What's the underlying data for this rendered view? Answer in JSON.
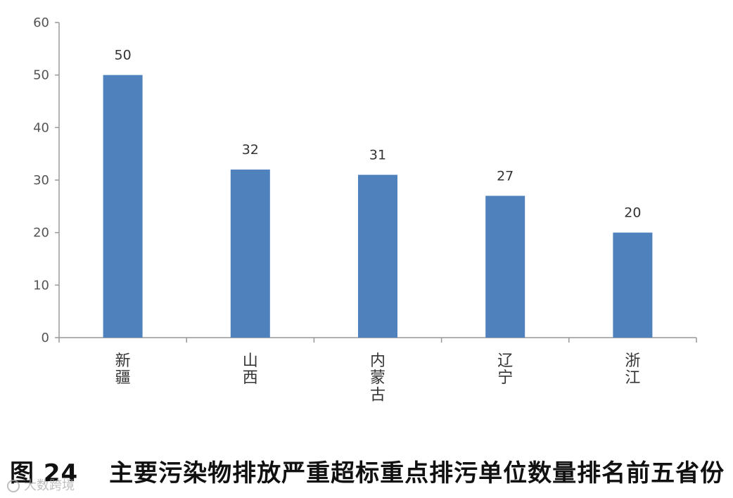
{
  "chart_data": {
    "type": "bar",
    "categories": [
      "新疆",
      "山西",
      "内蒙古",
      "辽宁",
      "浙江"
    ],
    "values": [
      50,
      32,
      31,
      27,
      20
    ],
    "data_labels": [
      "50",
      "32",
      "31",
      "27",
      "20"
    ],
    "ylim": [
      0,
      60
    ],
    "yticks": [
      0,
      10,
      20,
      30,
      40,
      50,
      60
    ],
    "grid": false,
    "bar_color": "#4f81bd",
    "title": "",
    "xlabel": "",
    "ylabel": ""
  },
  "caption": {
    "figure_number": "图 24",
    "text": "主要污染物排放严重超标重点排污单位数量排名前五省份"
  },
  "watermark": {
    "text": "大数跨境"
  }
}
